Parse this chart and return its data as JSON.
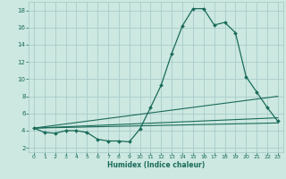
{
  "xlabel": "Humidex (Indice chaleur)",
  "background_color": "#cce8e0",
  "grid_color": "#aacccc",
  "line_color": "#1a6b5a",
  "xlim": [
    -0.5,
    23.5
  ],
  "ylim": [
    1.5,
    19.0
  ],
  "yticks": [
    2,
    4,
    6,
    8,
    10,
    12,
    14,
    16,
    18
  ],
  "xticks": [
    0,
    1,
    2,
    3,
    4,
    5,
    6,
    7,
    8,
    9,
    10,
    11,
    12,
    13,
    14,
    15,
    16,
    17,
    18,
    19,
    20,
    21,
    22,
    23
  ],
  "line1_x": [
    0,
    1,
    2,
    3,
    4,
    5,
    6,
    7,
    8,
    9,
    10,
    11,
    12,
    13,
    14,
    15,
    16,
    17,
    18,
    19,
    20,
    21,
    22,
    23
  ],
  "line1_y": [
    4.3,
    3.8,
    3.7,
    4.0,
    4.0,
    3.8,
    3.0,
    2.8,
    2.8,
    2.7,
    4.2,
    6.7,
    9.3,
    13.0,
    16.2,
    18.2,
    18.2,
    16.3,
    16.6,
    15.4,
    10.3,
    8.5,
    6.7,
    5.1
  ],
  "line2_x": [
    0,
    23
  ],
  "line2_y": [
    4.3,
    8.0
  ],
  "line3_x": [
    0,
    23
  ],
  "line3_y": [
    4.3,
    5.5
  ],
  "line4_x": [
    0,
    23
  ],
  "line4_y": [
    4.3,
    4.9
  ]
}
